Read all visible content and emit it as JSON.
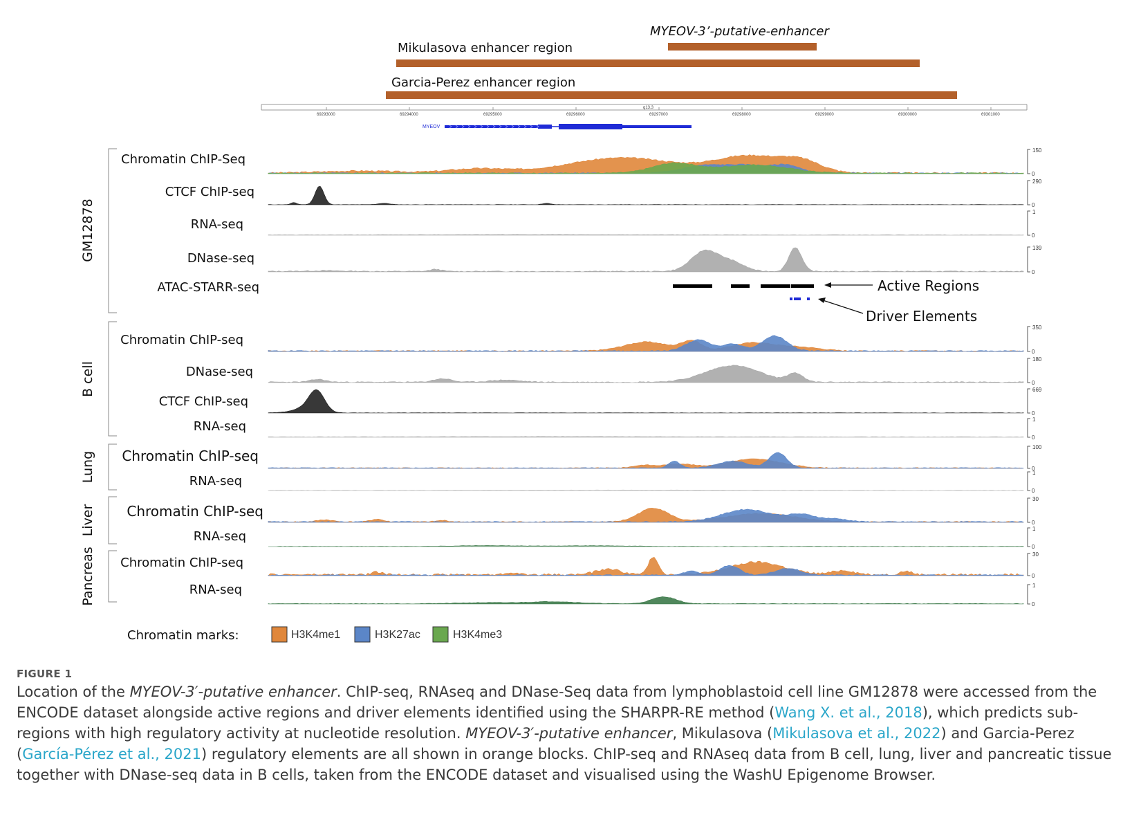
{
  "regions": {
    "myeov_label": "MYEOV-3’-putative-enhancer",
    "mikulasova_label": "Mikulasova enhancer region",
    "garcia_label": "Garcia-Perez enhancer region",
    "color": "#b3602a"
  },
  "ruler": {
    "center_label": "q13.3",
    "ticks": [
      "69293000",
      "69294000",
      "69295000",
      "69296000",
      "69297000",
      "69298000",
      "69299000",
      "69300000",
      "69301000"
    ]
  },
  "gene": {
    "name": "MYEOV",
    "color": "#1f2bd6"
  },
  "groups": [
    {
      "name": "GM12878",
      "tracks": [
        {
          "label": "Chromatin ChIP-Seq",
          "scale_max": "150",
          "scale_min": "0"
        },
        {
          "label": "CTCF ChIP-seq",
          "scale_max": "290",
          "scale_min": "0"
        },
        {
          "label": "RNA-seq",
          "scale_max": "1",
          "scale_min": "0"
        },
        {
          "label": "DNase-seq",
          "scale_max": "139",
          "scale_min": "0"
        },
        {
          "label": "ATAC-STARR-seq",
          "scale_max": "",
          "scale_min": ""
        }
      ]
    },
    {
      "name": "B cell",
      "tracks": [
        {
          "label": "Chromatin ChIP-seq",
          "scale_max": "350",
          "scale_min": "0"
        },
        {
          "label": "DNase-seq",
          "scale_max": "180",
          "scale_min": "0"
        },
        {
          "label": "CTCF ChIP-seq",
          "scale_max": "669",
          "scale_min": "0"
        },
        {
          "label": "RNA-seq",
          "scale_max": "1",
          "scale_min": "0"
        }
      ]
    },
    {
      "name": "Lung",
      "tracks": [
        {
          "label": "Chromatin ChIP-seq",
          "scale_max": "100",
          "scale_min": "0"
        },
        {
          "label": "RNA-seq",
          "scale_max": "1",
          "scale_min": "0"
        }
      ]
    },
    {
      "name": "Liver",
      "tracks": [
        {
          "label": "Chromatin ChIP-seq",
          "scale_max": "30",
          "scale_min": "0"
        },
        {
          "label": "RNA-seq",
          "scale_max": "1",
          "scale_min": "0"
        }
      ]
    },
    {
      "name": "Pancreas",
      "tracks": [
        {
          "label": "Chromatin ChIP-seq",
          "scale_max": "30",
          "scale_min": "0"
        },
        {
          "label": "RNA-seq",
          "scale_max": "1",
          "scale_min": "0"
        }
      ]
    }
  ],
  "annotations": {
    "active_regions": "Active Regions",
    "driver_elements": "Driver Elements"
  },
  "legend": {
    "title": "Chromatin marks:",
    "items": [
      {
        "label": "H3K4me1",
        "color": "#e0873b"
      },
      {
        "label": "H3K27ac",
        "color": "#5b86c8"
      },
      {
        "label": "H3K4me3",
        "color": "#6aa84f"
      }
    ]
  },
  "colors": {
    "dnase": "#a8a8a8",
    "ctcf": "#222222",
    "rna": "#3d7a4a",
    "atac": "#000000",
    "driver": "#1f2bd6"
  },
  "caption": {
    "figure_label": "FIGURE 1",
    "p1": "Location of the ",
    "p2": "MYEOV-3′-putative enhancer",
    "p3": ". ChIP-seq, RNAseq and DNase-Seq data from lymphoblastoid cell line GM12878 were accessed from the ENCODE dataset alongside active regions and driver elements identified using the SHARPR-RE method (",
    "p4": "Wang X. et al., 2018",
    "p5": "), which predicts sub-regions with high regulatory activity at nucleotide resolution. ",
    "p6": "MYEOV-3′-putative enhancer",
    "p7": ", Mikulasova (",
    "p8": "Mikulasova et al., 2022",
    "p9": ") and Garcia-Perez (",
    "p10": "García-Pérez et al., 2021",
    "p11": ") regulatory elements are all shown in orange blocks. ChIP-seq and RNAseq data from B cell, lung, liver and pancreatic tissue together with DNase-seq data in B cells, taken from the ENCODE dataset and visualised using the WashU Epigenome Browser."
  }
}
